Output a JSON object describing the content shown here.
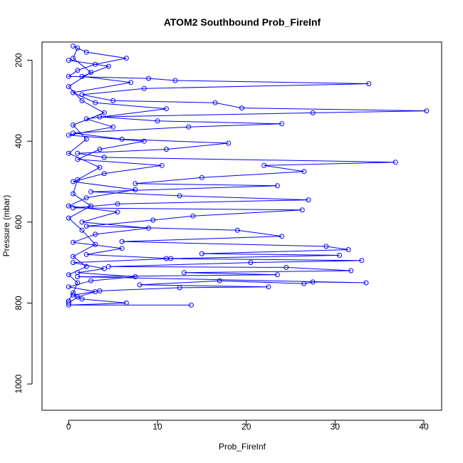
{
  "chart_data": {
    "type": "line",
    "title": "ATOM2 Southbound Prob_FireInf",
    "xlabel": "Prob_FireInf",
    "ylabel": "Pressure (mbar)",
    "xlim": [
      -3,
      42
    ],
    "ylim": [
      1065,
      155
    ],
    "x_ticks": [
      0,
      10,
      20,
      30,
      40
    ],
    "y_ticks": [
      200,
      400,
      600,
      800,
      1000
    ],
    "x_tick_labels": [
      "0",
      "10",
      "20",
      "30",
      "40"
    ],
    "y_tick_labels": [
      "200",
      "400",
      "600",
      "800",
      "1000"
    ],
    "color": "#0000ff",
    "marker": "open-circle",
    "series": [
      {
        "points": [
          [
            0.5,
            165
          ],
          [
            2.0,
            180
          ],
          [
            6.5,
            195
          ],
          [
            3.0,
            210
          ],
          [
            1.0,
            225
          ],
          [
            0.0,
            240
          ],
          [
            9.0,
            245
          ],
          [
            12.0,
            250
          ],
          [
            33.8,
            258
          ],
          [
            8.5,
            270
          ],
          [
            1.5,
            285
          ],
          [
            5.0,
            300
          ],
          [
            16.5,
            305
          ],
          [
            19.5,
            318
          ],
          [
            40.3,
            325
          ],
          [
            27.5,
            330
          ],
          [
            3.5,
            340
          ],
          [
            10.0,
            350
          ],
          [
            24.0,
            357
          ],
          [
            13.5,
            365
          ],
          [
            0.5,
            380
          ],
          [
            6.0,
            395
          ],
          [
            18.0,
            405
          ],
          [
            11.0,
            420
          ],
          [
            1.0,
            430
          ],
          [
            4.0,
            440
          ],
          [
            36.8,
            452
          ],
          [
            22.0,
            460
          ],
          [
            26.5,
            475
          ],
          [
            15.0,
            490
          ],
          [
            7.5,
            505
          ],
          [
            23.5,
            510
          ],
          [
            2.5,
            525
          ],
          [
            12.5,
            535
          ],
          [
            27.0,
            545
          ],
          [
            5.5,
            555
          ],
          [
            0.5,
            565
          ],
          [
            26.3,
            570
          ],
          [
            14.0,
            585
          ],
          [
            9.5,
            595
          ],
          [
            2.0,
            610
          ],
          [
            19.0,
            620
          ],
          [
            24.0,
            635
          ],
          [
            6.0,
            648
          ],
          [
            29.0,
            660
          ],
          [
            31.5,
            668
          ],
          [
            15.0,
            678
          ],
          [
            30.5,
            682
          ],
          [
            11.0,
            690
          ],
          [
            33.0,
            695
          ],
          [
            20.5,
            700
          ],
          [
            4.5,
            710
          ],
          [
            24.5,
            712
          ],
          [
            31.8,
            720
          ],
          [
            13.0,
            725
          ],
          [
            23.5,
            730
          ],
          [
            1.0,
            735
          ],
          [
            33.5,
            750
          ],
          [
            27.5,
            748
          ],
          [
            26.5,
            752
          ],
          [
            17.0,
            745
          ],
          [
            8.0,
            755
          ],
          [
            22.5,
            760
          ],
          [
            12.5,
            762
          ],
          [
            3.5,
            770
          ],
          [
            0.5,
            780
          ],
          [
            1.5,
            790
          ],
          [
            6.5,
            800
          ],
          [
            0.0,
            805
          ],
          [
            13.8,
            805
          ]
        ]
      },
      {
        "points": [
          [
            0.0,
            200
          ],
          [
            4.5,
            215
          ],
          [
            1.5,
            240
          ],
          [
            7.0,
            255
          ],
          [
            0.5,
            280
          ],
          [
            3.0,
            305
          ],
          [
            11.0,
            320
          ],
          [
            2.0,
            345
          ],
          [
            5.0,
            365
          ],
          [
            0.0,
            385
          ],
          [
            8.5,
            400
          ],
          [
            3.5,
            420
          ],
          [
            1.0,
            445
          ],
          [
            10.5,
            460
          ],
          [
            4.0,
            480
          ],
          [
            0.5,
            500
          ],
          [
            7.5,
            520
          ],
          [
            2.0,
            540
          ],
          [
            0.0,
            560
          ],
          [
            5.5,
            575
          ],
          [
            1.5,
            600
          ],
          [
            9.0,
            615
          ],
          [
            3.0,
            630
          ],
          [
            0.5,
            650
          ],
          [
            6.0,
            665
          ],
          [
            2.0,
            680
          ],
          [
            11.5,
            690
          ],
          [
            0.5,
            700
          ],
          [
            4.0,
            715
          ],
          [
            1.0,
            725
          ],
          [
            7.5,
            735
          ],
          [
            2.5,
            745
          ],
          [
            0.0,
            760
          ],
          [
            3.0,
            772
          ],
          [
            1.0,
            785
          ],
          [
            0.0,
            800
          ]
        ]
      },
      {
        "points": [
          [
            1.0,
            170
          ],
          [
            0.5,
            195
          ],
          [
            2.5,
            230
          ],
          [
            0.0,
            265
          ],
          [
            1.5,
            300
          ],
          [
            4.0,
            330
          ],
          [
            0.5,
            360
          ],
          [
            2.0,
            395
          ],
          [
            0.0,
            430
          ],
          [
            3.5,
            465
          ],
          [
            1.0,
            495
          ],
          [
            0.5,
            530
          ],
          [
            2.5,
            560
          ],
          [
            0.0,
            590
          ],
          [
            1.5,
            620
          ],
          [
            3.0,
            655
          ],
          [
            0.5,
            685
          ],
          [
            2.0,
            710
          ],
          [
            0.0,
            730
          ],
          [
            1.0,
            750
          ],
          [
            0.5,
            775
          ],
          [
            0.0,
            795
          ]
        ]
      }
    ]
  }
}
